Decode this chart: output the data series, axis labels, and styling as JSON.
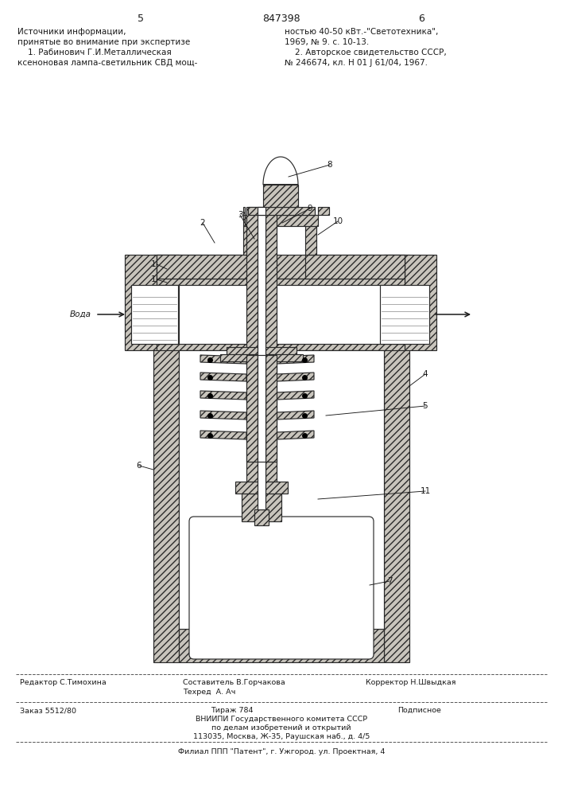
{
  "page_left": "5",
  "page_right": "6",
  "patent": "847398",
  "header_left": [
    "Источники информации,",
    "принятые во внимание при экспертизе",
    "    1. Рабинович Г.И.Металлическая",
    "ксеноновая лампа-светильник СВД мощ-"
  ],
  "header_right": [
    "ностью 40-50 кВт.-\"Светотехника\",",
    "1969, № 9. с. 10-13.",
    "    2. Авторское свидетельство СССР,",
    "№ 246674, кл. Н 01 J 61/04, 1967."
  ],
  "voda": "Вода",
  "footer": {
    "editor": "Редактор С.Тимохина",
    "compiler": "Составитель В.Горчакова",
    "techred": "Техред  А. Ач",
    "corrector": "Корректор Н.Швыдкая",
    "order": "Заказ 5512/80",
    "tirazh": "Тираж 784",
    "podpis": "Подписное",
    "vniip1": "ВНИИПИ Государственного комитета СССР",
    "vniip2": "по делам изобретений и открытий",
    "vniip3": "113035, Москва, Ж-35, Раушская наб., д. 4/5",
    "filial": "Филиал ППП \"Патент\", г. Ужгород. ул. Проектная, 4"
  },
  "gray": "#c8c4bc",
  "ec": "#2a2a2a",
  "lc": "#1a1a1a",
  "white": "#ffffff"
}
